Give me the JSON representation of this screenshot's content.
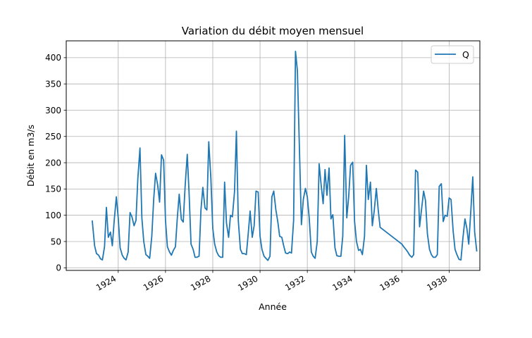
{
  "chart_data": {
    "type": "line",
    "title": "Variation du débit moyen mensuel",
    "xlabel": "Année",
    "ylabel": "Débit en m3/s",
    "grid": true,
    "legend_position": "top-right",
    "xlim": [
      1921.8,
      1939.3
    ],
    "ylim": [
      -5,
      432
    ],
    "x_ticks": [
      1924,
      1926,
      1928,
      1930,
      1932,
      1934,
      1936,
      1938
    ],
    "x_tick_labels": [
      "1924",
      "1926",
      "1928",
      "1930",
      "1932",
      "1934",
      "1936",
      "1938"
    ],
    "y_ticks": [
      0,
      50,
      100,
      150,
      200,
      250,
      300,
      350,
      400
    ],
    "y_tick_labels": [
      "0",
      "50",
      "100",
      "150",
      "200",
      "250",
      "300",
      "350",
      "400"
    ],
    "series": [
      {
        "name": "Q",
        "color": "#1f77b4",
        "points": [
          [
            1922.9,
            90
          ],
          [
            1923.0,
            42
          ],
          [
            1923.08,
            27
          ],
          [
            1923.17,
            24
          ],
          [
            1923.25,
            17
          ],
          [
            1923.33,
            15
          ],
          [
            1923.42,
            40
          ],
          [
            1923.5,
            115
          ],
          [
            1923.58,
            58
          ],
          [
            1923.67,
            68
          ],
          [
            1923.75,
            42
          ],
          [
            1923.83,
            90
          ],
          [
            1923.92,
            135
          ],
          [
            1924.0,
            95
          ],
          [
            1924.08,
            38
          ],
          [
            1924.17,
            24
          ],
          [
            1924.25,
            18
          ],
          [
            1924.33,
            15
          ],
          [
            1924.42,
            30
          ],
          [
            1924.5,
            105
          ],
          [
            1924.58,
            97
          ],
          [
            1924.67,
            80
          ],
          [
            1924.75,
            90
          ],
          [
            1924.83,
            170
          ],
          [
            1924.92,
            228
          ],
          [
            1925.0,
            95
          ],
          [
            1925.08,
            50
          ],
          [
            1925.17,
            25
          ],
          [
            1925.25,
            22
          ],
          [
            1925.33,
            18
          ],
          [
            1925.42,
            60
          ],
          [
            1925.5,
            130
          ],
          [
            1925.58,
            180
          ],
          [
            1925.67,
            157
          ],
          [
            1925.75,
            125
          ],
          [
            1925.83,
            215
          ],
          [
            1925.92,
            205
          ],
          [
            1926.0,
            90
          ],
          [
            1926.08,
            40
          ],
          [
            1926.17,
            30
          ],
          [
            1926.25,
            24
          ],
          [
            1926.33,
            33
          ],
          [
            1926.42,
            40
          ],
          [
            1926.5,
            95
          ],
          [
            1926.58,
            140
          ],
          [
            1926.67,
            92
          ],
          [
            1926.75,
            87
          ],
          [
            1926.83,
            155
          ],
          [
            1926.92,
            216
          ],
          [
            1927.0,
            140
          ],
          [
            1927.08,
            45
          ],
          [
            1927.17,
            35
          ],
          [
            1927.25,
            20
          ],
          [
            1927.33,
            20
          ],
          [
            1927.42,
            22
          ],
          [
            1927.5,
            110
          ],
          [
            1927.58,
            153
          ],
          [
            1927.67,
            114
          ],
          [
            1927.75,
            110
          ],
          [
            1927.83,
            240
          ],
          [
            1927.92,
            170
          ],
          [
            1928.0,
            75
          ],
          [
            1928.08,
            45
          ],
          [
            1928.17,
            30
          ],
          [
            1928.25,
            23
          ],
          [
            1928.33,
            20
          ],
          [
            1928.42,
            20
          ],
          [
            1928.5,
            163
          ],
          [
            1928.58,
            85
          ],
          [
            1928.67,
            58
          ],
          [
            1928.75,
            100
          ],
          [
            1928.83,
            97
          ],
          [
            1928.92,
            145
          ],
          [
            1929.0,
            260
          ],
          [
            1929.08,
            90
          ],
          [
            1929.17,
            35
          ],
          [
            1929.25,
            27
          ],
          [
            1929.33,
            27
          ],
          [
            1929.42,
            25
          ],
          [
            1929.5,
            65
          ],
          [
            1929.58,
            108
          ],
          [
            1929.67,
            58
          ],
          [
            1929.75,
            80
          ],
          [
            1929.83,
            146
          ],
          [
            1929.92,
            144
          ],
          [
            1930.0,
            60
          ],
          [
            1930.08,
            35
          ],
          [
            1930.17,
            22
          ],
          [
            1930.25,
            18
          ],
          [
            1930.33,
            14
          ],
          [
            1930.42,
            22
          ],
          [
            1930.5,
            135
          ],
          [
            1930.58,
            146
          ],
          [
            1930.67,
            110
          ],
          [
            1930.75,
            88
          ],
          [
            1930.83,
            60
          ],
          [
            1930.92,
            58
          ],
          [
            1931.0,
            42
          ],
          [
            1931.08,
            28
          ],
          [
            1931.17,
            27
          ],
          [
            1931.25,
            30
          ],
          [
            1931.33,
            28
          ],
          [
            1931.42,
            90
          ],
          [
            1931.5,
            412
          ],
          [
            1931.58,
            375
          ],
          [
            1931.67,
            220
          ],
          [
            1931.75,
            82
          ],
          [
            1931.83,
            130
          ],
          [
            1931.92,
            151
          ],
          [
            1932.0,
            135
          ],
          [
            1932.08,
            95
          ],
          [
            1932.17,
            30
          ],
          [
            1932.25,
            22
          ],
          [
            1932.33,
            18
          ],
          [
            1932.42,
            50
          ],
          [
            1932.5,
            198
          ],
          [
            1932.58,
            160
          ],
          [
            1932.67,
            122
          ],
          [
            1932.75,
            187
          ],
          [
            1932.83,
            138
          ],
          [
            1932.92,
            190
          ],
          [
            1933.0,
            93
          ],
          [
            1933.08,
            101
          ],
          [
            1933.17,
            38
          ],
          [
            1933.25,
            23
          ],
          [
            1933.33,
            22
          ],
          [
            1933.42,
            22
          ],
          [
            1933.5,
            60
          ],
          [
            1933.58,
            252
          ],
          [
            1933.67,
            95
          ],
          [
            1933.75,
            135
          ],
          [
            1933.83,
            195
          ],
          [
            1933.92,
            201
          ],
          [
            1934.0,
            88
          ],
          [
            1934.08,
            50
          ],
          [
            1934.17,
            33
          ],
          [
            1934.25,
            35
          ],
          [
            1934.33,
            25
          ],
          [
            1934.42,
            60
          ],
          [
            1934.5,
            195
          ],
          [
            1934.58,
            130
          ],
          [
            1934.67,
            163
          ],
          [
            1934.75,
            80
          ],
          [
            1934.83,
            108
          ],
          [
            1934.92,
            151
          ],
          [
            1935.0,
            110
          ],
          [
            1935.08,
            77
          ],
          [
            1936.0,
            45
          ],
          [
            1936.08,
            40
          ],
          [
            1936.17,
            35
          ],
          [
            1936.25,
            30
          ],
          [
            1936.33,
            24
          ],
          [
            1936.42,
            20
          ],
          [
            1936.5,
            25
          ],
          [
            1936.58,
            186
          ],
          [
            1936.67,
            182
          ],
          [
            1936.75,
            78
          ],
          [
            1936.83,
            110
          ],
          [
            1936.92,
            146
          ],
          [
            1937.0,
            128
          ],
          [
            1937.08,
            65
          ],
          [
            1937.17,
            35
          ],
          [
            1937.25,
            25
          ],
          [
            1937.33,
            20
          ],
          [
            1937.42,
            20
          ],
          [
            1937.5,
            25
          ],
          [
            1937.58,
            155
          ],
          [
            1937.67,
            160
          ],
          [
            1937.75,
            88
          ],
          [
            1937.83,
            100
          ],
          [
            1937.92,
            98
          ],
          [
            1938.0,
            133
          ],
          [
            1938.08,
            130
          ],
          [
            1938.17,
            70
          ],
          [
            1938.25,
            35
          ],
          [
            1938.33,
            25
          ],
          [
            1938.42,
            16
          ],
          [
            1938.5,
            15
          ],
          [
            1938.58,
            55
          ],
          [
            1938.67,
            93
          ],
          [
            1938.75,
            75
          ],
          [
            1938.83,
            45
          ],
          [
            1938.92,
            110
          ],
          [
            1939.0,
            173
          ],
          [
            1939.08,
            68
          ],
          [
            1939.17,
            31
          ]
        ]
      }
    ]
  }
}
